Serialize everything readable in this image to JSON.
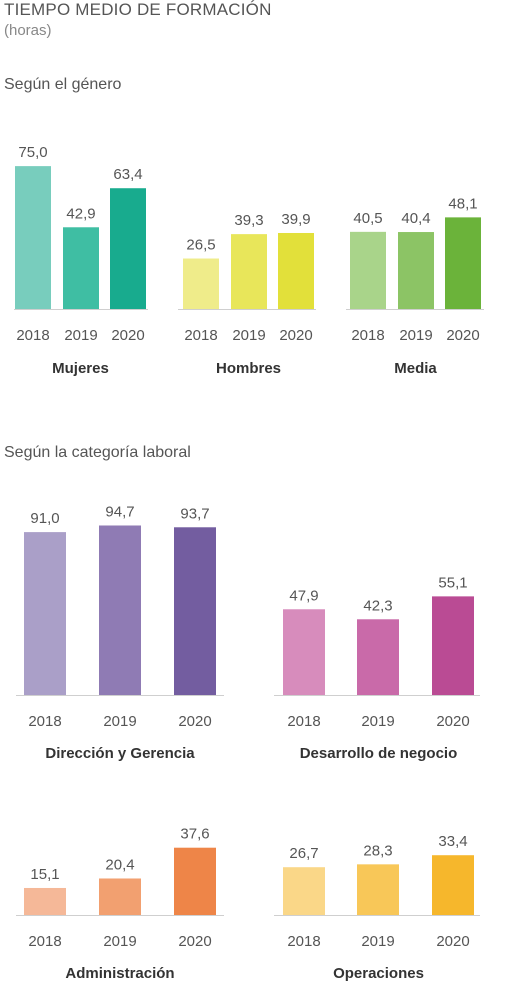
{
  "header": {
    "title": "TIEMPO MEDIO DE FORMACIÓN",
    "subtitle": "(horas)"
  },
  "sections": {
    "gender": "Según el género",
    "category": "Según la categoría laboral"
  },
  "chart_data": [
    {
      "type": "bar",
      "section": "Según el género",
      "groups": [
        {
          "name": "Mujeres",
          "categories": [
            "2018",
            "2019",
            "2020"
          ],
          "values": [
            75.0,
            42.9,
            63.4
          ],
          "labels": [
            "75,0",
            "42,9",
            "63,4"
          ],
          "colors": [
            "#78cdbd",
            "#3fbea3",
            "#18ab8e"
          ]
        },
        {
          "name": "Hombres",
          "categories": [
            "2018",
            "2019",
            "2020"
          ],
          "values": [
            26.5,
            39.3,
            39.9
          ],
          "labels": [
            "26,5",
            "39,3",
            "39,9"
          ],
          "colors": [
            "#efec8a",
            "#e8e65a",
            "#e2e03a"
          ]
        },
        {
          "name": "Media",
          "categories": [
            "2018",
            "2019",
            "2020"
          ],
          "values": [
            40.5,
            40.4,
            48.1
          ],
          "labels": [
            "40,5",
            "40,4",
            "48,1"
          ],
          "colors": [
            "#a9d48a",
            "#8cc465",
            "#6bb33a"
          ]
        }
      ]
    },
    {
      "type": "bar",
      "section": "Según la categoría laboral",
      "groups": [
        {
          "name": "Dirección y Gerencia",
          "categories": [
            "2018",
            "2019",
            "2020"
          ],
          "values": [
            91.0,
            94.7,
            93.7
          ],
          "labels": [
            "91,0",
            "94,7",
            "93,7"
          ],
          "colors": [
            "#aa9fc8",
            "#8f7bb4",
            "#735da0"
          ]
        },
        {
          "name": "Desarrollo de negocio",
          "categories": [
            "2018",
            "2019",
            "2020"
          ],
          "values": [
            47.9,
            42.3,
            55.1
          ],
          "labels": [
            "47,9",
            "42,3",
            "55,1"
          ],
          "colors": [
            "#d78cbc",
            "#c96aa9",
            "#ba4b94"
          ]
        },
        {
          "name": "Administración",
          "categories": [
            "2018",
            "2019",
            "2020"
          ],
          "values": [
            15.1,
            20.4,
            37.6
          ],
          "labels": [
            "15,1",
            "20,4",
            "37,6"
          ],
          "colors": [
            "#f5b898",
            "#f2a070",
            "#ee8548"
          ]
        },
        {
          "name": "Operaciones",
          "categories": [
            "2018",
            "2019",
            "2020"
          ],
          "values": [
            26.7,
            28.3,
            33.4
          ],
          "labels": [
            "26,7",
            "28,3",
            "33,4"
          ],
          "colors": [
            "#fad788",
            "#f8c758",
            "#f6b72c"
          ]
        }
      ]
    }
  ]
}
